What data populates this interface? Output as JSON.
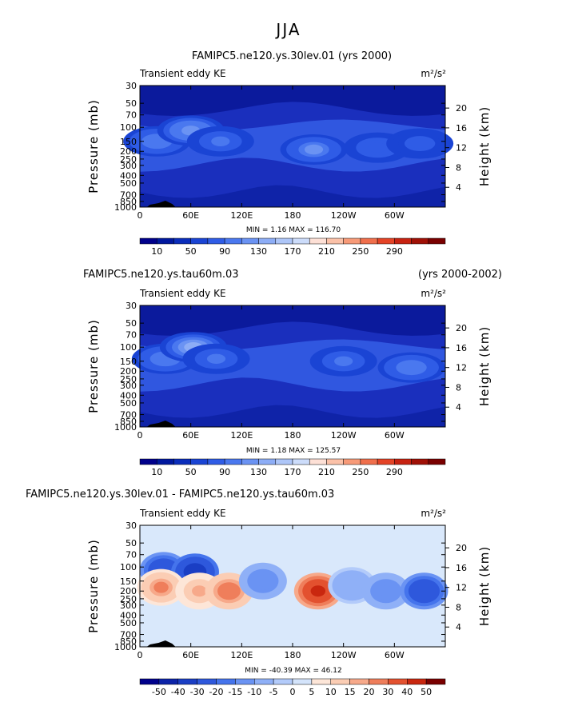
{
  "page": {
    "season": "JJA"
  },
  "colors": {
    "abs_palette": [
      "#00008b",
      "#00189e",
      "#0a2dbb",
      "#1a44d4",
      "#2f5ce6",
      "#4a78ef",
      "#6b93f3",
      "#8dadf6",
      "#aec6f8",
      "#ccdcfa",
      "#fde0d6",
      "#fbc1a8",
      "#f79a78",
      "#f06f4c",
      "#e44326",
      "#c72211",
      "#a01006",
      "#7a0000"
    ],
    "diff_palette": [
      "#00008b",
      "#0c23a8",
      "#1a3ec4",
      "#2e58dc",
      "#4574ec",
      "#6a93f3",
      "#8fb0f7",
      "#b3cbfa",
      "#d4e4fb",
      "#fde6d8",
      "#fbcdb4",
      "#f7a98a",
      "#ef7e5b",
      "#e3512f",
      "#c9270f",
      "#7a0000"
    ],
    "contour_base_abs": "#1a2fbd",
    "contour_base_diff": "#d9e8fb",
    "ground": "#000000"
  },
  "chart_data": [
    {
      "id": "panel1",
      "type": "contour",
      "title": "FAMIPC5.ne120.ys.30lev.01 (yrs 2000)",
      "title_right": "",
      "left_label": "Transient eddy KE",
      "units": "m²/s²",
      "ylabel": "Pressure (mb)",
      "ylabel_right": "Height (km)",
      "y_ticks": [
        "30",
        "50",
        "70",
        "100",
        "150",
        "200",
        "250",
        "300",
        "400",
        "500",
        "700",
        "850",
        "1000"
      ],
      "y_ticks_right": [
        "20",
        "16",
        "12",
        "8",
        "4"
      ],
      "x_ticks": [
        "0",
        "60E",
        "120E",
        "180",
        "120W",
        "60W"
      ],
      "x_range_deg": [
        0,
        360
      ],
      "min_max_label": "MIN =    1.16   MAX = 116.70",
      "min": 1.16,
      "max": 116.7,
      "colorbar_labels": [
        "10",
        "50",
        "90",
        "130",
        "170",
        "210",
        "250",
        "290"
      ],
      "features": [
        {
          "lon": 20,
          "p": 150,
          "value": 95
        },
        {
          "lon": 60,
          "p": 110,
          "value": 110
        },
        {
          "lon": 95,
          "p": 150,
          "value": 85
        },
        {
          "lon": 205,
          "p": 190,
          "value": 100
        },
        {
          "lon": 280,
          "p": 180,
          "value": 75
        },
        {
          "lon": 330,
          "p": 160,
          "value": 70
        }
      ]
    },
    {
      "id": "panel2",
      "type": "contour",
      "title": "FAMIPC5.ne120.ys.tau60m.03",
      "title_right": "(yrs 2000-2002)",
      "left_label": "Transient eddy KE",
      "units": "m²/s²",
      "ylabel": "Pressure (mb)",
      "ylabel_right": "Height (km)",
      "y_ticks": [
        "30",
        "50",
        "70",
        "100",
        "150",
        "200",
        "250",
        "300",
        "400",
        "500",
        "700",
        "850",
        "1000"
      ],
      "y_ticks_right": [
        "20",
        "16",
        "12",
        "8",
        "4"
      ],
      "x_ticks": [
        "0",
        "60E",
        "120E",
        "180",
        "120W",
        "60W"
      ],
      "x_range_deg": [
        0,
        360
      ],
      "min_max_label": "MIN =    1.18   MAX = 125.57",
      "min": 1.18,
      "max": 125.57,
      "colorbar_labels": [
        "10",
        "50",
        "90",
        "130",
        "170",
        "210",
        "250",
        "290"
      ],
      "features": [
        {
          "lon": 30,
          "p": 140,
          "value": 95
        },
        {
          "lon": 63,
          "p": 100,
          "value": 120
        },
        {
          "lon": 90,
          "p": 140,
          "value": 85
        },
        {
          "lon": 240,
          "p": 150,
          "value": 80
        },
        {
          "lon": 320,
          "p": 180,
          "value": 90
        }
      ]
    },
    {
      "id": "panel3",
      "type": "contour",
      "title": "FAMIPC5.ne120.ys.30lev.01 - FAMIPC5.ne120.ys.tau60m.03",
      "title_right": "",
      "left_label": "Transient eddy KE",
      "units": "m²/s²",
      "ylabel": "Pressure (mb)",
      "ylabel_right": "Height (km)",
      "y_ticks": [
        "30",
        "50",
        "70",
        "100",
        "150",
        "200",
        "250",
        "300",
        "400",
        "500",
        "700",
        "850",
        "1000"
      ],
      "y_ticks_right": [
        "20",
        "16",
        "12",
        "8",
        "4"
      ],
      "x_ticks": [
        "0",
        "60E",
        "120E",
        "180",
        "120W",
        "60W"
      ],
      "x_range_deg": [
        0,
        360
      ],
      "min_max_label": "MIN =  -40.39   MAX =  46.12",
      "min": -40.39,
      "max": 46.12,
      "colorbar_labels": [
        "-50",
        "-40",
        "-30",
        "-20",
        "-15",
        "-10",
        "-5",
        "0",
        "5",
        "10",
        "15",
        "20",
        "30",
        "40",
        "50"
      ],
      "features": [
        {
          "lon": 28,
          "p": 110,
          "value": -30
        },
        {
          "lon": 65,
          "p": 115,
          "value": -38
        },
        {
          "lon": 25,
          "p": 180,
          "value": 20
        },
        {
          "lon": 70,
          "p": 200,
          "value": 15
        },
        {
          "lon": 105,
          "p": 200,
          "value": 25
        },
        {
          "lon": 145,
          "p": 150,
          "value": -15
        },
        {
          "lon": 210,
          "p": 200,
          "value": 46
        },
        {
          "lon": 250,
          "p": 170,
          "value": -10
        },
        {
          "lon": 290,
          "p": 200,
          "value": -15
        },
        {
          "lon": 335,
          "p": 200,
          "value": -30
        }
      ]
    }
  ]
}
